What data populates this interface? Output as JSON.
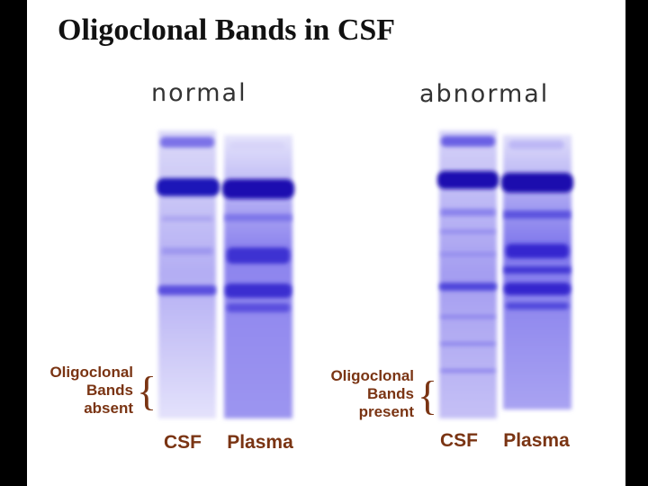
{
  "title": "Oligoclonal Bands in CSF",
  "panels": [
    {
      "label": "normal",
      "annotation": [
        "Oligoclonal",
        "Bands",
        "absent"
      ],
      "lanes": [
        "CSF",
        "Plasma"
      ]
    },
    {
      "label": "abnormal",
      "annotation": [
        "Oligoclonal",
        "Bands",
        "present"
      ],
      "lanes": [
        "CSF",
        "Plasma"
      ]
    }
  ]
}
